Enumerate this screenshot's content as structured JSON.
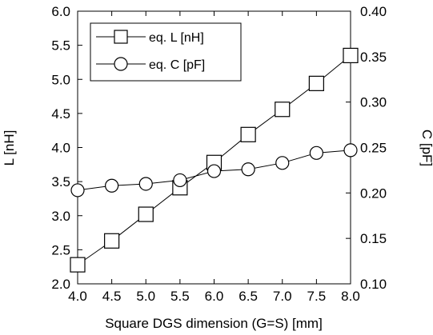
{
  "chart_data": {
    "type": "line",
    "xlabel": "Square DGS dimension (G=S) [mm]",
    "ylabel_left": "L [nH]",
    "ylabel_right": "C [pF]",
    "xlim": [
      4.0,
      8.0
    ],
    "ylim_left": [
      2.0,
      6.0
    ],
    "ylim_right": [
      0.1,
      0.4
    ],
    "x_ticks": [
      "4.0",
      "4.5",
      "5.0",
      "5.5",
      "6.0",
      "6.5",
      "7.0",
      "7.5",
      "8.0"
    ],
    "y_left_ticks": [
      "2.0",
      "2.5",
      "3.0",
      "3.5",
      "4.0",
      "4.5",
      "5.0",
      "5.5",
      "6.0"
    ],
    "y_right_ticks": [
      "0.10",
      "0.15",
      "0.20",
      "0.25",
      "0.30",
      "0.35",
      "0.40"
    ],
    "legend_position": "top-left",
    "grid": false,
    "x": [
      4.0,
      4.5,
      5.0,
      5.5,
      6.0,
      6.5,
      7.0,
      7.5,
      8.0
    ],
    "series": [
      {
        "name": "eq. L [nH]",
        "axis": "left",
        "marker": "square",
        "values": [
          2.28,
          2.63,
          3.02,
          3.41,
          3.78,
          4.19,
          4.56,
          4.94,
          5.35
        ]
      },
      {
        "name": "eq. C [pF]",
        "axis": "right",
        "marker": "circle",
        "values": [
          0.203,
          0.208,
          0.21,
          0.214,
          0.224,
          0.226,
          0.233,
          0.244,
          0.247
        ]
      }
    ]
  }
}
